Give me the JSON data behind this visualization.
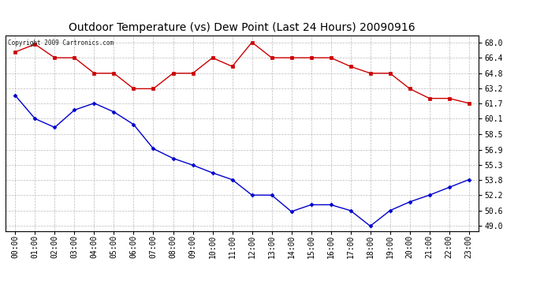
{
  "title": "Outdoor Temperature (vs) Dew Point (Last 24 Hours) 20090916",
  "copyright": "Copyright 2009 Cartronics.com",
  "x_labels": [
    "00:00",
    "01:00",
    "02:00",
    "03:00",
    "04:00",
    "05:00",
    "06:00",
    "07:00",
    "08:00",
    "09:00",
    "10:00",
    "11:00",
    "12:00",
    "13:00",
    "14:00",
    "15:00",
    "16:00",
    "17:00",
    "18:00",
    "19:00",
    "20:00",
    "21:00",
    "22:00",
    "23:00"
  ],
  "temp_data": [
    67.0,
    67.8,
    66.4,
    66.4,
    64.8,
    64.8,
    63.2,
    63.2,
    64.8,
    64.8,
    66.4,
    65.5,
    68.0,
    66.4,
    66.4,
    66.4,
    66.4,
    65.5,
    64.8,
    64.8,
    63.2,
    62.2,
    62.2,
    61.7
  ],
  "dew_data": [
    62.5,
    60.1,
    59.2,
    61.0,
    61.7,
    60.8,
    59.5,
    57.0,
    56.0,
    55.3,
    54.5,
    53.8,
    52.2,
    52.2,
    50.5,
    51.2,
    51.2,
    50.6,
    49.0,
    50.6,
    51.5,
    52.2,
    53.0,
    53.8
  ],
  "temp_color": "#cc0000",
  "dew_color": "#0000cc",
  "bg_color": "#ffffff",
  "plot_bg": "#ffffff",
  "grid_color": "#aaaaaa",
  "yticks": [
    49.0,
    50.6,
    52.2,
    53.8,
    55.3,
    56.9,
    58.5,
    60.1,
    61.7,
    63.2,
    64.8,
    66.4,
    68.0
  ],
  "ylim_min": 48.5,
  "ylim_max": 68.7,
  "title_fontsize": 10,
  "tick_fontsize": 7,
  "copyright_fontsize": 5.5
}
